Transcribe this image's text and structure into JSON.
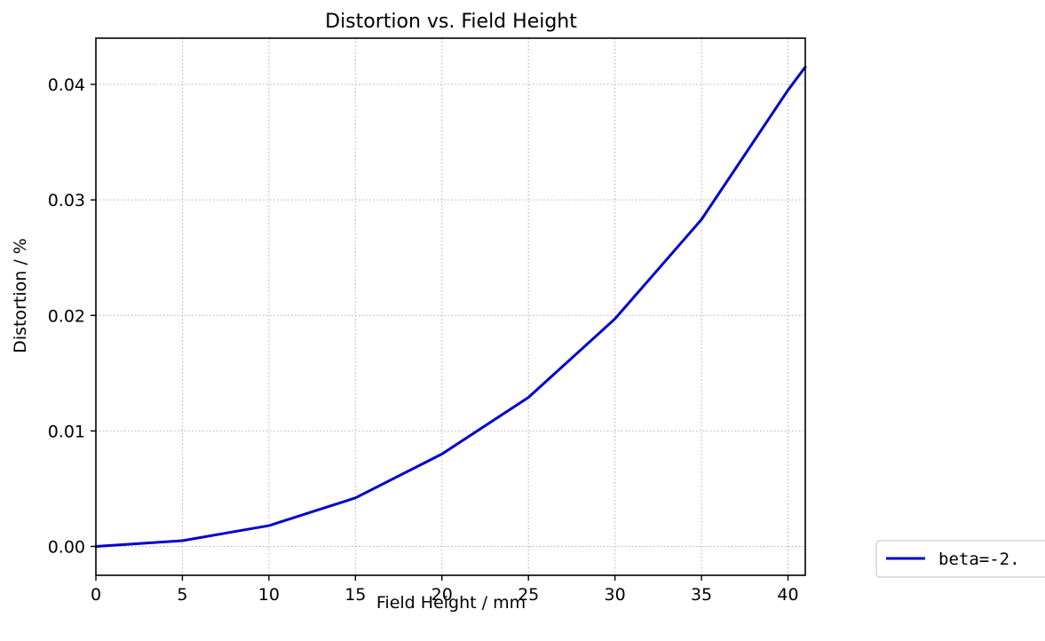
{
  "chart_data": {
    "type": "line",
    "title": "Distortion vs. Field Height",
    "xlabel": "Field Height / mm",
    "ylabel": "Distortion / %",
    "xlim": [
      0,
      41
    ],
    "ylim": [
      -0.0025,
      0.044
    ],
    "xticks": [
      0,
      5,
      10,
      15,
      20,
      25,
      30,
      35,
      40
    ],
    "yticks": [
      0.0,
      0.01,
      0.02,
      0.03,
      0.04
    ],
    "xtick_labels": [
      "0",
      "5",
      "10",
      "15",
      "20",
      "25",
      "30",
      "35",
      "40"
    ],
    "ytick_labels": [
      "0.00",
      "0.01",
      "0.02",
      "0.03",
      "0.04"
    ],
    "grid": true,
    "legend_position": "outside-right",
    "series": [
      {
        "name": "beta=-2.",
        "color": "#0000cc",
        "x": [
          0,
          5,
          10,
          15,
          20,
          25,
          30,
          35,
          40,
          41
        ],
        "y": [
          0.0,
          0.0005,
          0.0018,
          0.0042,
          0.008,
          0.0129,
          0.0197,
          0.0283,
          0.0395,
          0.0415
        ]
      }
    ]
  }
}
